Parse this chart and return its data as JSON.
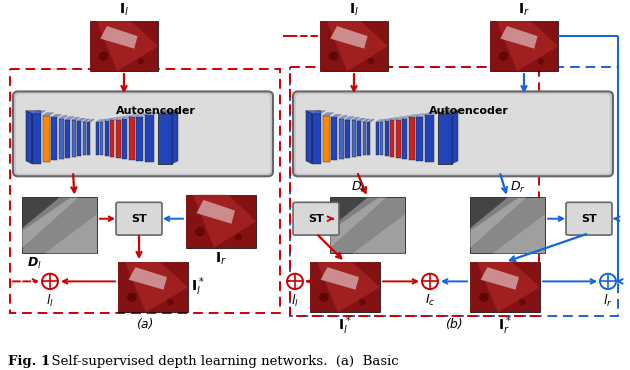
{
  "title_bold": "Fig. 1",
  "title_rest": "  Self-supervised depth learning networks.  (a)  Basic",
  "caption_a": "(a)",
  "caption_b": "(b)",
  "red": "#cc0000",
  "blue": "#1166dd",
  "dark_blue": "#0044bb",
  "orange": "#ff8800",
  "gray_ae": "#d4d4d4",
  "gray_ae_grad": "#e8e8e8",
  "gray_st": "#cccccc",
  "white": "#ffffff",
  "bg": "#ffffff",
  "fig_width": 6.3,
  "fig_height": 3.7,
  "dpi": 100
}
